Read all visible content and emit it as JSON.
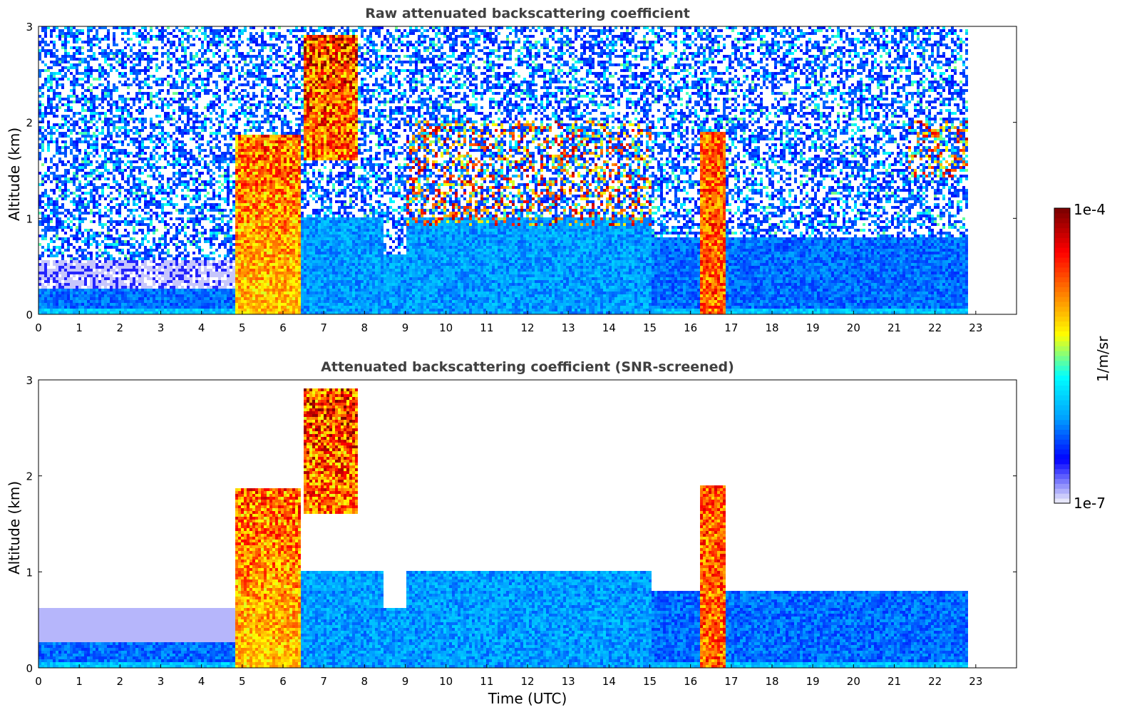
{
  "chart_data": [
    {
      "type": "heatmap",
      "title": "Raw attenuated backscattering coefficient",
      "xlabel": "",
      "ylabel": "Altitude (km)",
      "xlim": [
        0,
        24
      ],
      "ylim": [
        0,
        3
      ],
      "xticks": [
        "0",
        "1",
        "2",
        "3",
        "4",
        "5",
        "6",
        "7",
        "8",
        "9",
        "10",
        "11",
        "12",
        "13",
        "14",
        "15",
        "16",
        "17",
        "18",
        "19",
        "20",
        "21",
        "22",
        "23"
      ],
      "yticks": [
        "0",
        "1",
        "2",
        "3"
      ],
      "data_end_hour": 22.8,
      "layers": [
        {
          "kind": "surface_layer",
          "hours": [
            0,
            4.8
          ],
          "altitude_km": [
            0,
            0.25
          ]
        },
        {
          "kind": "dense_cloud",
          "hours": [
            4.8,
            6.4
          ],
          "altitude_km": [
            0,
            1.85
          ]
        },
        {
          "kind": "dense_cloud",
          "hours": [
            6.5,
            7.8
          ],
          "altitude_km": [
            1.6,
            2.9
          ]
        },
        {
          "kind": "cloud_layer",
          "hours": [
            9.0,
            15.0
          ],
          "altitude_km": [
            0.9,
            2.0
          ]
        },
        {
          "kind": "precipitation_column",
          "hours": [
            16.2,
            16.8
          ],
          "altitude_km": [
            0,
            1.9
          ]
        },
        {
          "kind": "cloud_layer",
          "hours": [
            21.3,
            22.8
          ],
          "altitude_km": [
            1.4,
            2.0
          ]
        }
      ]
    },
    {
      "type": "heatmap",
      "title": "Attenuated backscattering coefficient (SNR-screened)",
      "xlabel": "Time (UTC)",
      "ylabel": "Altitude (km)",
      "xlim": [
        0,
        24
      ],
      "ylim": [
        0,
        3
      ],
      "xticks": [
        "0",
        "1",
        "2",
        "3",
        "4",
        "5",
        "6",
        "7",
        "8",
        "9",
        "10",
        "11",
        "12",
        "13",
        "14",
        "15",
        "16",
        "17",
        "18",
        "19",
        "20",
        "21",
        "22",
        "23"
      ],
      "yticks": [
        "0",
        "1",
        "2",
        "3"
      ],
      "data_end_hour": 22.8,
      "layers": [
        {
          "kind": "surface_layer",
          "hours": [
            0,
            4.8
          ],
          "altitude_km": [
            0,
            0.6
          ]
        },
        {
          "kind": "dense_cloud",
          "hours": [
            4.8,
            6.4
          ],
          "altitude_km": [
            0,
            1.85
          ]
        },
        {
          "kind": "dense_cloud",
          "hours": [
            6.5,
            7.8
          ],
          "altitude_km": [
            1.6,
            2.9
          ]
        },
        {
          "kind": "boundary_layer",
          "hours": [
            6.4,
            15.0
          ],
          "altitude_km": [
            0,
            1.1
          ]
        },
        {
          "kind": "precipitation_column",
          "hours": [
            16.2,
            16.8
          ],
          "altitude_km": [
            0,
            1.9
          ]
        },
        {
          "kind": "boundary_layer",
          "hours": [
            15.0,
            22.8
          ],
          "altitude_km": [
            0,
            0.9
          ]
        }
      ]
    }
  ],
  "colorbar": {
    "label": "1/m/sr",
    "max_label": "1e-4",
    "min_label": "1e-7",
    "scale": "log",
    "colormap": "jet",
    "colors": [
      "#e6e6fa",
      "#0000ff",
      "#00a0ff",
      "#00ffff",
      "#ffff00",
      "#ff8000",
      "#ff0000",
      "#800000"
    ]
  }
}
